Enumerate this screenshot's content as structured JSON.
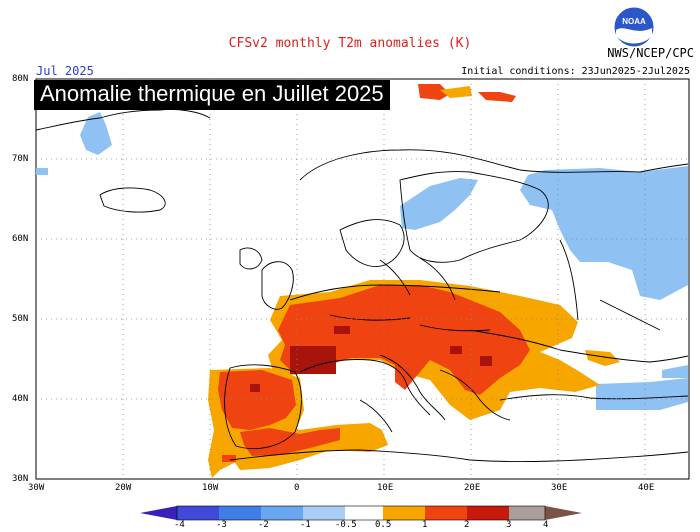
{
  "header": {
    "title": "CFSv2 monthly T2m anomalies (K)",
    "month": "Jul 2025",
    "initial_conditions": "Initial conditions: 23Jun2025-2Jul2025",
    "agency": "NWS/NCEP/CPC",
    "logo_text": "NOAA",
    "overlay_title": "Anomalie thermique en Juillet 2025"
  },
  "axes": {
    "lat_labels": [
      "80N",
      "70N",
      "60N",
      "50N",
      "40N",
      "30N"
    ],
    "lon_labels": [
      "30W",
      "20W",
      "10W",
      "0",
      "10E",
      "20E",
      "30E",
      "40E"
    ]
  },
  "colorbar": {
    "labels": [
      "-4",
      "-3",
      "-2",
      "-1",
      "-0.5",
      "0.5",
      "1",
      "2",
      "3",
      "4"
    ],
    "colors": [
      "#3a1fb8",
      "#4149d8",
      "#3f7ee6",
      "#6aa6f0",
      "#a8cef6",
      "#ffffff",
      "#f7a600",
      "#f04312",
      "#c51a0c",
      "#8e0a09",
      "#a99e9c",
      "#7a5346"
    ]
  },
  "legend_colors": {
    "cold_light": "#8fc2f3",
    "warm_light": "#f7a600",
    "warm_mid": "#f04312",
    "warm_dark": "#a8140c"
  }
}
